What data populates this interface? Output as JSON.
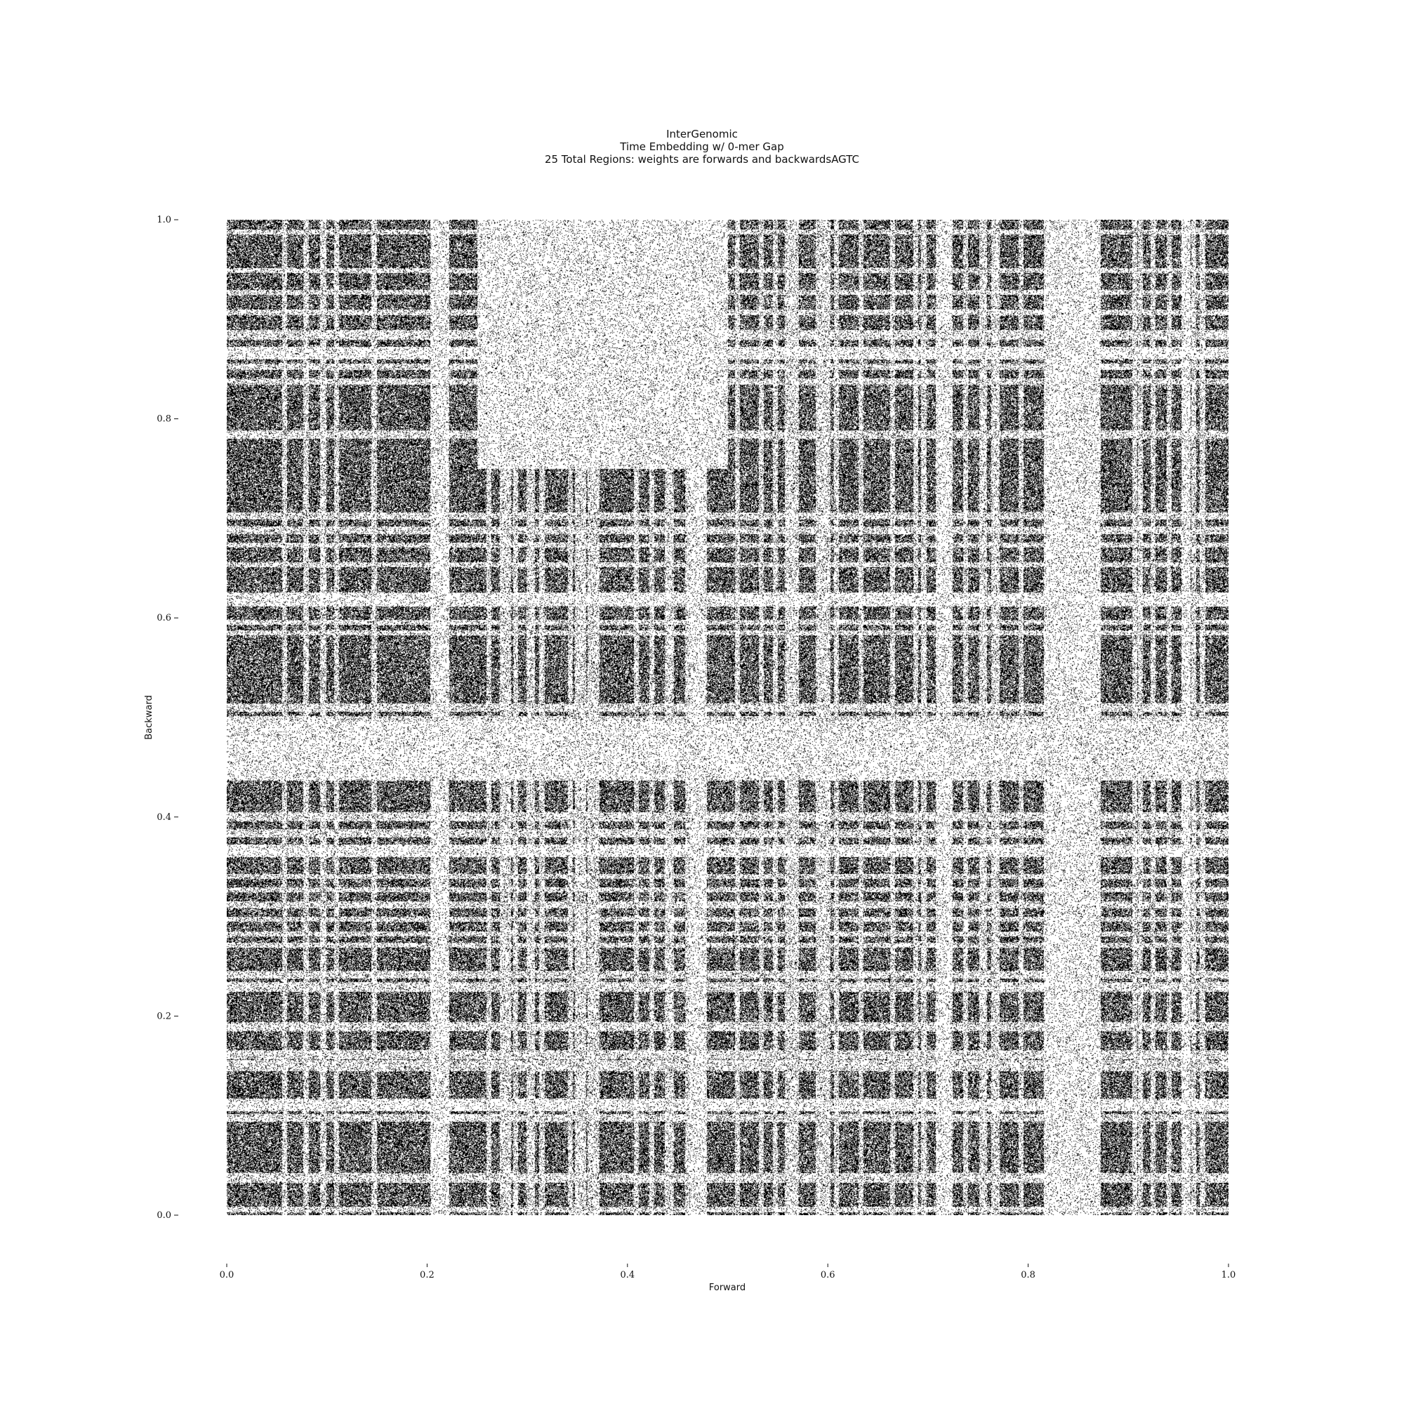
{
  "chart_data": {
    "type": "scatter",
    "title_lines": [
      "InterGenomic",
      "Time Embedding w/ 0-mer Gap",
      "25 Total Regions: weights are forwards and backwardsAGTC"
    ],
    "xlabel": "Forward",
    "ylabel": "Backward",
    "xlim": [
      0.0,
      1.0
    ],
    "ylim": [
      0.0,
      1.0
    ],
    "x_ticks": [
      0.0,
      0.2,
      0.4,
      0.6,
      0.8,
      1.0
    ],
    "y_ticks": [
      0.0,
      0.2,
      0.4,
      0.6,
      0.8,
      1.0
    ],
    "x_tick_labels": [
      "0.0",
      "0.2",
      "0.4",
      "0.6",
      "0.8",
      "1.0"
    ],
    "y_tick_labels": [
      "0.0",
      "0.2",
      "0.4",
      "0.6",
      "0.8",
      "1.0"
    ],
    "grid": false,
    "marker_color": "#000000",
    "background_color": "#ffffff",
    "sparse_bands_forward": [
      [
        0.203,
        0.222
      ],
      [
        0.462,
        0.479
      ],
      [
        0.708,
        0.724
      ],
      [
        0.815,
        0.872
      ],
      [
        0.953,
        0.962
      ]
    ],
    "sparse_bands_backward": [
      [
        0.105,
        0.117
      ],
      [
        0.36,
        0.373
      ],
      [
        0.437,
        0.497
      ],
      [
        0.612,
        0.626
      ],
      [
        0.86,
        0.873
      ]
    ],
    "sparse_blocks": [
      {
        "forward": [
          0.25,
          0.5
        ],
        "backward": [
          0.75,
          1.0
        ]
      }
    ],
    "dense_region_density": 0.62,
    "sparse_region_density": 0.12
  }
}
